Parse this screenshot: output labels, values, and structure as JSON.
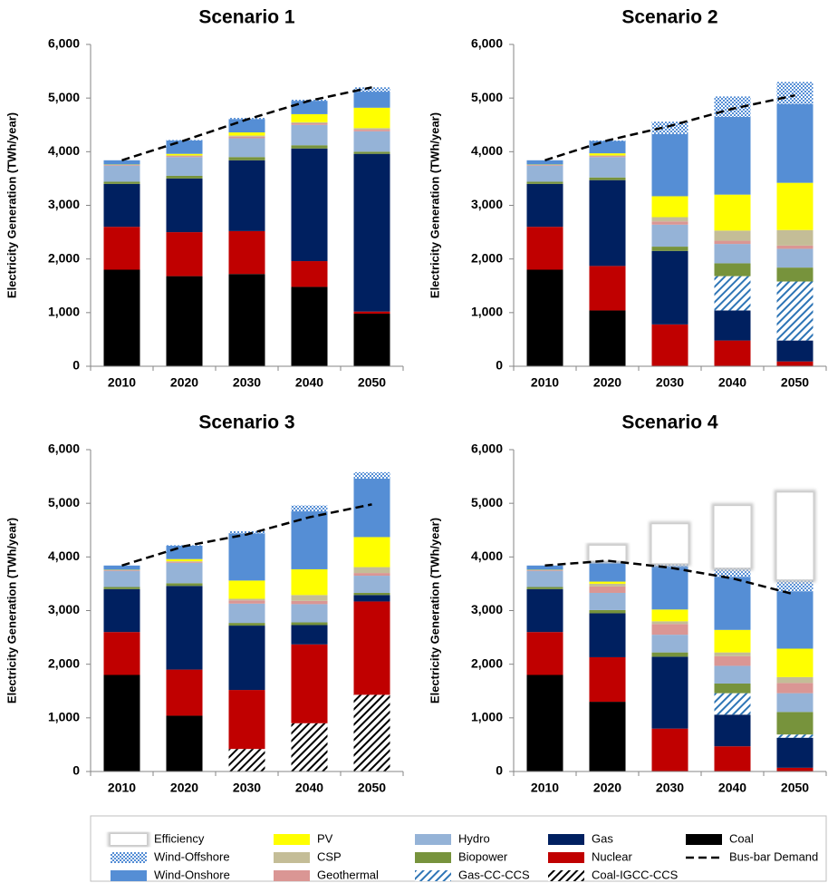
{
  "chart_data": [
    {
      "type": "bar",
      "stacked": true,
      "title": "Scenario 1",
      "y_label": "Electricity Generation (TWh/year)",
      "categories": [
        "2010",
        "2020",
        "2030",
        "2040",
        "2050"
      ],
      "ylim": [
        0,
        6000
      ],
      "yticks": [
        0,
        {
          "value": 1000,
          "label": "1,000"
        },
        {
          "value": 2000,
          "label": "2,000"
        },
        {
          "value": 3000,
          "label": "3,000"
        },
        {
          "value": 4000,
          "label": "4,000"
        },
        {
          "value": 5000,
          "label": "5,000"
        },
        {
          "value": 6000,
          "label": "6,000"
        }
      ],
      "series": [
        {
          "name": "Coal",
          "color": "#000000",
          "values": [
            1800,
            1680,
            1720,
            1480,
            980
          ]
        },
        {
          "name": "Coal-IGCC-CCS",
          "color": "#000000",
          "hatch": "diagonal",
          "values": [
            0,
            0,
            0,
            0,
            0
          ]
        },
        {
          "name": "Nuclear",
          "color": "#c00000",
          "values": [
            800,
            820,
            800,
            480,
            40
          ]
        },
        {
          "name": "Gas",
          "color": "#002060",
          "values": [
            800,
            1000,
            1320,
            2100,
            2940
          ]
        },
        {
          "name": "Gas-CC-CCS",
          "color": "#2e75b6",
          "hatch": "diagonal",
          "values": [
            0,
            0,
            0,
            0,
            0
          ]
        },
        {
          "name": "Biopower",
          "color": "#77933c",
          "values": [
            40,
            50,
            60,
            60,
            40
          ]
        },
        {
          "name": "Hydro",
          "color": "#95b3d7",
          "values": [
            300,
            350,
            350,
            380,
            380
          ]
        },
        {
          "name": "Geothermal",
          "color": "#da9694",
          "values": [
            15,
            20,
            30,
            30,
            30
          ]
        },
        {
          "name": "CSP",
          "color": "#c4bd97",
          "values": [
            0,
            10,
            20,
            20,
            30
          ]
        },
        {
          "name": "PV",
          "color": "#ffff00",
          "values": [
            5,
            30,
            60,
            150,
            380
          ]
        },
        {
          "name": "Wind-Onshore",
          "color": "#558ed5",
          "values": [
            80,
            250,
            250,
            250,
            300
          ]
        },
        {
          "name": "Wind-Offshore",
          "color": "#558ed5",
          "hatch": "checker",
          "values": [
            0,
            10,
            20,
            20,
            80
          ]
        },
        {
          "name": "Efficiency",
          "color": "#ffffff",
          "border": "#c8c8c8",
          "values": [
            0,
            0,
            0,
            0,
            0
          ]
        },
        {
          "name": "Bus-bar Demand",
          "type": "line",
          "dash": true,
          "color": "#000000",
          "values": [
            3840,
            4210,
            4600,
            4950,
            5200
          ]
        }
      ]
    },
    {
      "type": "bar",
      "stacked": true,
      "title": "Scenario 2",
      "y_label": "Electricity Generation (TWh/year)",
      "categories": [
        "2010",
        "2020",
        "2030",
        "2040",
        "2050"
      ],
      "ylim": [
        0,
        6000
      ],
      "yticks": [
        0,
        {
          "value": 1000,
          "label": "1,000"
        },
        {
          "value": 2000,
          "label": "2,000"
        },
        {
          "value": 3000,
          "label": "3,000"
        },
        {
          "value": 4000,
          "label": "4,000"
        },
        {
          "value": 5000,
          "label": "5,000"
        },
        {
          "value": 6000,
          "label": "6,000"
        }
      ],
      "series": [
        {
          "name": "Coal",
          "color": "#000000",
          "values": [
            1800,
            1040,
            0,
            0,
            0
          ]
        },
        {
          "name": "Coal-IGCC-CCS",
          "color": "#000000",
          "hatch": "diagonal",
          "values": [
            0,
            0,
            0,
            0,
            0
          ]
        },
        {
          "name": "Nuclear",
          "color": "#c00000",
          "values": [
            800,
            830,
            780,
            480,
            90
          ]
        },
        {
          "name": "Gas",
          "color": "#002060",
          "values": [
            800,
            1600,
            1370,
            560,
            390
          ]
        },
        {
          "name": "Gas-CC-CCS",
          "color": "#2e75b6",
          "hatch": "diagonal",
          "values": [
            0,
            0,
            0,
            640,
            1100
          ]
        },
        {
          "name": "Biopower",
          "color": "#77933c",
          "values": [
            40,
            50,
            80,
            240,
            260
          ]
        },
        {
          "name": "Hydro",
          "color": "#95b3d7",
          "values": [
            300,
            380,
            410,
            360,
            350
          ]
        },
        {
          "name": "Geothermal",
          "color": "#da9694",
          "values": [
            15,
            20,
            60,
            60,
            60
          ]
        },
        {
          "name": "CSP",
          "color": "#c4bd97",
          "values": [
            0,
            10,
            80,
            190,
            290
          ]
        },
        {
          "name": "PV",
          "color": "#ffff00",
          "values": [
            5,
            40,
            390,
            670,
            880
          ]
        },
        {
          "name": "Wind-Onshore",
          "color": "#558ed5",
          "values": [
            80,
            230,
            1160,
            1450,
            1470
          ]
        },
        {
          "name": "Wind-Offshore",
          "color": "#558ed5",
          "hatch": "checker",
          "values": [
            0,
            10,
            230,
            380,
            410
          ]
        },
        {
          "name": "Efficiency",
          "color": "#ffffff",
          "border": "#c8c8c8",
          "values": [
            0,
            0,
            0,
            0,
            0
          ]
        },
        {
          "name": "Bus-bar Demand",
          "type": "line",
          "dash": true,
          "color": "#000000",
          "values": [
            3840,
            4210,
            4480,
            4800,
            5050
          ]
        }
      ]
    },
    {
      "type": "bar",
      "stacked": true,
      "title": "Scenario 3",
      "y_label": "Electricity Generation (TWh/year)",
      "categories": [
        "2010",
        "2020",
        "2030",
        "2040",
        "2050"
      ],
      "ylim": [
        0,
        6000
      ],
      "yticks": [
        0,
        {
          "value": 1000,
          "label": "1,000"
        },
        {
          "value": 2000,
          "label": "2,000"
        },
        {
          "value": 3000,
          "label": "3,000"
        },
        {
          "value": 4000,
          "label": "4,000"
        },
        {
          "value": 5000,
          "label": "5,000"
        },
        {
          "value": 6000,
          "label": "6,000"
        }
      ],
      "series": [
        {
          "name": "Coal",
          "color": "#000000",
          "values": [
            1800,
            1040,
            0,
            0,
            0
          ]
        },
        {
          "name": "Coal-IGCC-CCS",
          "color": "#000000",
          "hatch": "diagonal",
          "values": [
            0,
            0,
            420,
            900,
            1430
          ]
        },
        {
          "name": "Nuclear",
          "color": "#c00000",
          "values": [
            800,
            860,
            1100,
            1470,
            1740
          ]
        },
        {
          "name": "Gas",
          "color": "#002060",
          "values": [
            800,
            1560,
            1200,
            360,
            120
          ]
        },
        {
          "name": "Gas-CC-CCS",
          "color": "#2e75b6",
          "hatch": "diagonal",
          "values": [
            0,
            0,
            0,
            0,
            0
          ]
        },
        {
          "name": "Biopower",
          "color": "#77933c",
          "values": [
            40,
            50,
            50,
            50,
            40
          ]
        },
        {
          "name": "Hydro",
          "color": "#95b3d7",
          "values": [
            300,
            380,
            360,
            340,
            320
          ]
        },
        {
          "name": "Geothermal",
          "color": "#da9694",
          "values": [
            15,
            20,
            60,
            60,
            50
          ]
        },
        {
          "name": "CSP",
          "color": "#c4bd97",
          "values": [
            0,
            10,
            30,
            110,
            110
          ]
        },
        {
          "name": "PV",
          "color": "#ffff00",
          "values": [
            5,
            40,
            340,
            480,
            560
          ]
        },
        {
          "name": "Wind-Onshore",
          "color": "#558ed5",
          "values": [
            80,
            250,
            880,
            1080,
            1090
          ]
        },
        {
          "name": "Wind-Offshore",
          "color": "#558ed5",
          "hatch": "checker",
          "values": [
            0,
            10,
            40,
            110,
            120
          ]
        },
        {
          "name": "Efficiency",
          "color": "#ffffff",
          "border": "#c8c8c8",
          "values": [
            0,
            0,
            0,
            0,
            0
          ]
        },
        {
          "name": "Bus-bar Demand",
          "type": "line",
          "dash": true,
          "color": "#000000",
          "values": [
            3840,
            4200,
            4420,
            4740,
            4980
          ]
        }
      ]
    },
    {
      "type": "bar",
      "stacked": true,
      "title": "Scenario 4",
      "y_label": "Electricity Generation (TWh/year)",
      "categories": [
        "2010",
        "2020",
        "2030",
        "2040",
        "2050"
      ],
      "ylim": [
        0,
        6000
      ],
      "yticks": [
        0,
        {
          "value": 1000,
          "label": "1,000"
        },
        {
          "value": 2000,
          "label": "2,000"
        },
        {
          "value": 3000,
          "label": "3,000"
        },
        {
          "value": 4000,
          "label": "4,000"
        },
        {
          "value": 5000,
          "label": "5,000"
        },
        {
          "value": 6000,
          "label": "6,000"
        }
      ],
      "series": [
        {
          "name": "Coal",
          "color": "#000000",
          "values": [
            1800,
            1300,
            0,
            0,
            0
          ]
        },
        {
          "name": "Coal-IGCC-CCS",
          "color": "#000000",
          "hatch": "diagonal",
          "values": [
            0,
            0,
            0,
            0,
            0
          ]
        },
        {
          "name": "Nuclear",
          "color": "#c00000",
          "values": [
            800,
            830,
            800,
            470,
            70
          ]
        },
        {
          "name": "Gas",
          "color": "#002060",
          "values": [
            800,
            820,
            1340,
            590,
            560
          ]
        },
        {
          "name": "Gas-CC-CCS",
          "color": "#2e75b6",
          "hatch": "diagonal",
          "values": [
            0,
            0,
            0,
            400,
            60
          ]
        },
        {
          "name": "Biopower",
          "color": "#77933c",
          "values": [
            40,
            60,
            80,
            180,
            420
          ]
        },
        {
          "name": "Hydro",
          "color": "#95b3d7",
          "values": [
            300,
            320,
            330,
            330,
            350
          ]
        },
        {
          "name": "Geothermal",
          "color": "#da9694",
          "values": [
            15,
            120,
            200,
            180,
            190
          ]
        },
        {
          "name": "CSP",
          "color": "#c4bd97",
          "values": [
            0,
            50,
            50,
            70,
            110
          ]
        },
        {
          "name": "PV",
          "color": "#ffff00",
          "values": [
            5,
            40,
            220,
            420,
            530
          ]
        },
        {
          "name": "Wind-Onshore",
          "color": "#558ed5",
          "values": [
            80,
            360,
            810,
            990,
            1070
          ]
        },
        {
          "name": "Wind-Offshore",
          "color": "#558ed5",
          "hatch": "checker",
          "values": [
            0,
            30,
            50,
            170,
            220
          ]
        },
        {
          "name": "Efficiency",
          "color": "#ffffff",
          "border": "#c8c8c8",
          "values": [
            0,
            280,
            730,
            1150,
            1620
          ]
        },
        {
          "name": "Bus-bar Demand",
          "type": "line",
          "dash": true,
          "color": "#000000",
          "values": [
            3840,
            3930,
            3800,
            3600,
            3300
          ]
        }
      ]
    }
  ]
}
